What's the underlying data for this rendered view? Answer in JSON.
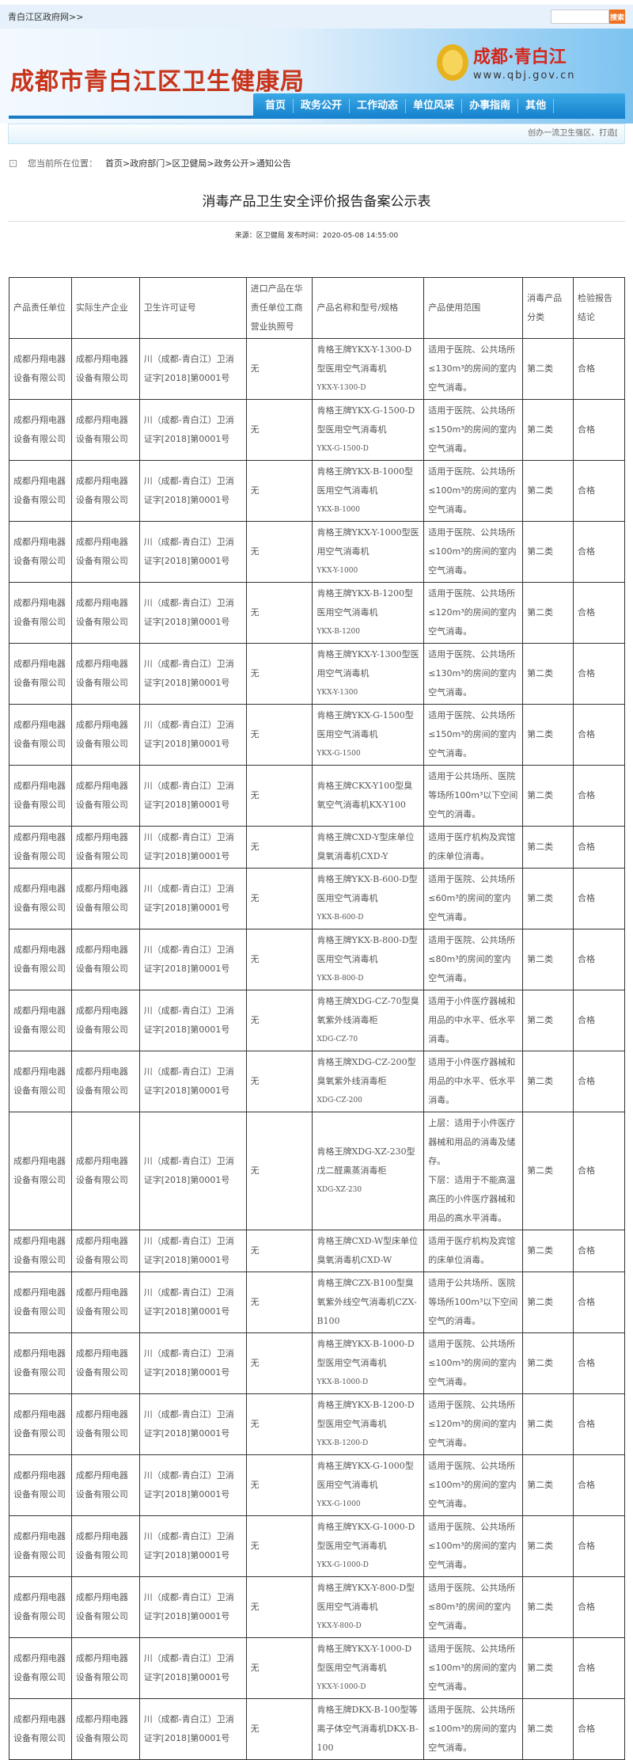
{
  "topbar": {
    "link": "青白江区政府网>>",
    "search_button": "搜索",
    "search_value": ""
  },
  "header": {
    "title": "成都市青白江区卫生健康局",
    "logo_text": "成都·青白江",
    "logo_url": "www.qbj.gov.cn"
  },
  "nav": [
    "首页",
    "政务公开",
    "工作动态",
    "单位风采",
    "办事指南",
    "其他"
  ],
  "marquee": "创办一流卫生强区、打造[",
  "breadcrumb": {
    "label": "您当前所在位置：",
    "path": "首页>政府部门>区卫健局>政务公开>通知公告"
  },
  "article": {
    "title": "消毒产品卫生安全评价报告备案公示表",
    "meta": "来源：区卫健局 发布时间：2020-05-08 14:55:00"
  },
  "table": {
    "headers": [
      "产品责任单位",
      "实际生产企业",
      "卫生许可证号",
      "进口产品在华责任单位工商营业执照号",
      "产品名称和型号/规格",
      "产品使用范围",
      "消毒产品分类",
      "检验报告结论"
    ],
    "common": {
      "unit": "成都丹翔电器设备有限公司",
      "maker": "成都丹翔电器设备有限公司",
      "license": "川（成都-青白江）卫消证字[2018]第0001号",
      "import": "无",
      "category": "第二类",
      "result": "合格"
    },
    "rows": [
      {
        "name": "肯格王牌YKX-Y-1300-D型医用空气消毒机",
        "model": "YKX-Y-1300-D",
        "usage": "适用于医院、公共场所≤130m³的房间的室内空气消毒。"
      },
      {
        "name": "肯格王牌YKX-G-1500-D型医用空气消毒机",
        "model": "YKX-G-1500-D",
        "usage": "适用于医院、公共场所≤150m³的房间的室内空气消毒。"
      },
      {
        "name": "肯格王牌YKX-B-1000型医用空气消毒机",
        "model": "YKX-B-1000",
        "usage": "适用于医院、公共场所≤100m³的房间的室内空气消毒。"
      },
      {
        "name": "肯格王牌YKX-Y-1000型医用空气消毒机",
        "model": "YKX-Y-1000",
        "usage": "适用于医院、公共场所≤100m³的房间的室内空气消毒。"
      },
      {
        "name": "肯格王牌YKX-B-1200型医用空气消毒机",
        "model": "YKX-B-1200",
        "usage": "适用于医院、公共场所≤120m³的房间的室内空气消毒。"
      },
      {
        "name": "肯格王牌YKX-Y-1300型医用空气消毒机",
        "model": "YKX-Y-1300",
        "usage": "适用于医院、公共场所≤130m³的房间的室内空气消毒。"
      },
      {
        "name": "肯格王牌YKX-G-1500型医用空气消毒机",
        "model": "YKX-G-1500",
        "usage": "适用于医院、公共场所≤150m³的房间的室内空气消毒。"
      },
      {
        "name": "肯格王牌CKX-Y100型臭氧空气消毒机KX-Y100",
        "model": "",
        "usage": "适用于公共场所、医院等场所100m³以下空间空气的消毒。"
      },
      {
        "name": "肯格王牌CXD-Y型床单位臭氧消毒机CXD-Y",
        "model": "",
        "usage": "适用于医疗机构及宾馆的床单位消毒。"
      },
      {
        "name": "肯格王牌YKX-B-600-D型医用空气消毒机",
        "model": "YKX-B-600-D",
        "usage": "适用于医院、公共场所≤60m³的房间的室内空气消毒。"
      },
      {
        "name": "肯格王牌YKX-B-800-D型医用空气消毒机",
        "model": "YKX-B-800-D",
        "usage": "适用于医院、公共场所≤80m³的房间的室内空气消毒。"
      },
      {
        "name": "肯格王牌XDG-CZ-70型臭氧紫外线消毒柜",
        "model": "XDG-CZ-70",
        "usage": "适用于小件医疗器械和用品的中水平、低水平消毒。"
      },
      {
        "name": "肯格王牌XDG-CZ-200型臭氧紫外线消毒柜",
        "model": "XDG-CZ-200",
        "usage": "适用于小件医疗器械和用品的中水平、低水平消毒。"
      },
      {
        "name": "肯格王牌XDG-XZ-230型戊二醛熏蒸消毒柜",
        "model": "XDG-XZ-230",
        "usage": "上层：适用于小件医疗器械和用品的消毒及储存。\n下层：适用于不能高温高压的小件医疗器械和用品的高水平消毒。"
      },
      {
        "name": "肯格王牌CXD-W型床单位臭氧消毒机CXD-W",
        "model": "",
        "usage": "适用于医疗机构及宾馆的床单位消毒。"
      },
      {
        "name": "肯格王牌CZX-B100型臭氧紫外线空气消毒机CZX-B100",
        "model": "",
        "usage": "适用于公共场所、医院等场所100m³以下空间空气的消毒。"
      },
      {
        "name": "肯格王牌YKX-B-1000-D型医用空气消毒机",
        "model": "YKX-B-1000-D",
        "usage": "适用于医院、公共场所≤100m³的房间的室内空气消毒。"
      },
      {
        "name": "肯格王牌YKX-B-1200-D型医用空气消毒机",
        "model": "YKX-B-1200-D",
        "usage": "适用于医院、公共场所≤120m³的房间的室内空气消毒。"
      },
      {
        "name": "肯格王牌YKX-G-1000型医用空气消毒机",
        "model": "YKX-G-1000",
        "usage": "适用于医院、公共场所≤100m³的房间的室内空气消毒。"
      },
      {
        "name": "肯格王牌YKX-G-1000-D型医用空气消毒机",
        "model": "YKX-G-1000-D",
        "usage": "适用于医院、公共场所≤100m³的房间的室内空气消毒。"
      },
      {
        "name": "肯格王牌YKX-Y-800-D型医用空气消毒机",
        "model": "YKX-Y-800-D",
        "usage": "适用于医院、公共场所≤80m³的房间的室内空气消毒。"
      },
      {
        "name": "肯格王牌YKX-Y-1000-D型医用空气消毒机",
        "model": "YKX-Y-1000-D",
        "usage": "适用于医院、公共场所≤100m³的房间的室内空气消毒。"
      },
      {
        "name": "肯格王牌DKX-B-100型等离子体空气消毒机DKX-B-100",
        "model": "",
        "usage": "适用于医院、公共场所≤100m³的房间的室内空气消毒。"
      }
    ]
  },
  "colors": {
    "title_red": "#c8341a",
    "nav_blue": "#1a8fd6",
    "search_orange": "#f07022"
  }
}
